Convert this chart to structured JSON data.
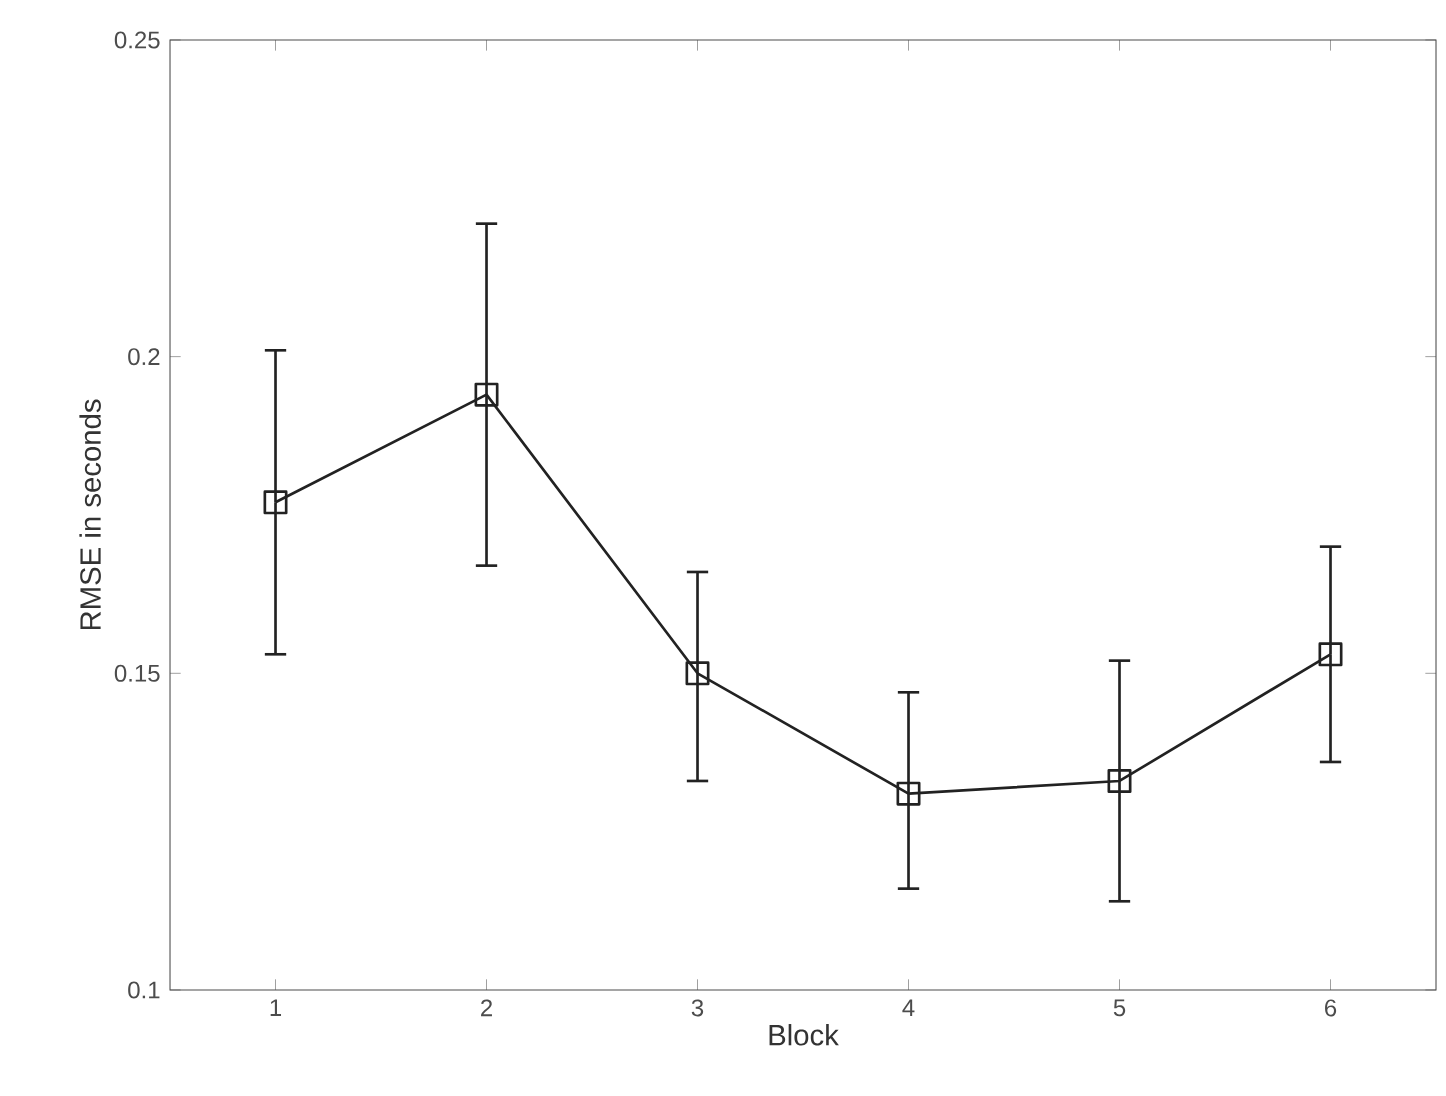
{
  "chart_data": {
    "type": "line",
    "xlabel": "Block",
    "ylabel": "RMSE in seconds",
    "x": [
      1,
      2,
      3,
      4,
      5,
      6
    ],
    "series": [
      {
        "color": "#222222",
        "values": [
          0.177,
          0.194,
          0.15,
          0.131,
          0.133,
          0.153
        ],
        "errors": [
          [
            0.153,
            0.201
          ],
          [
            0.167,
            0.221
          ],
          [
            0.133,
            0.166
          ],
          [
            0.116,
            0.147
          ],
          [
            0.114,
            0.152
          ],
          [
            0.136,
            0.17
          ]
        ]
      }
    ],
    "xlim": [
      0.5,
      6.5
    ],
    "xticks": [
      1,
      2,
      3,
      4,
      5,
      6
    ],
    "ylim": [
      0.1,
      0.25
    ],
    "yticks": [
      0.1,
      0.15,
      0.2,
      0.25
    ],
    "marker": "square",
    "line_style": "solid"
  }
}
